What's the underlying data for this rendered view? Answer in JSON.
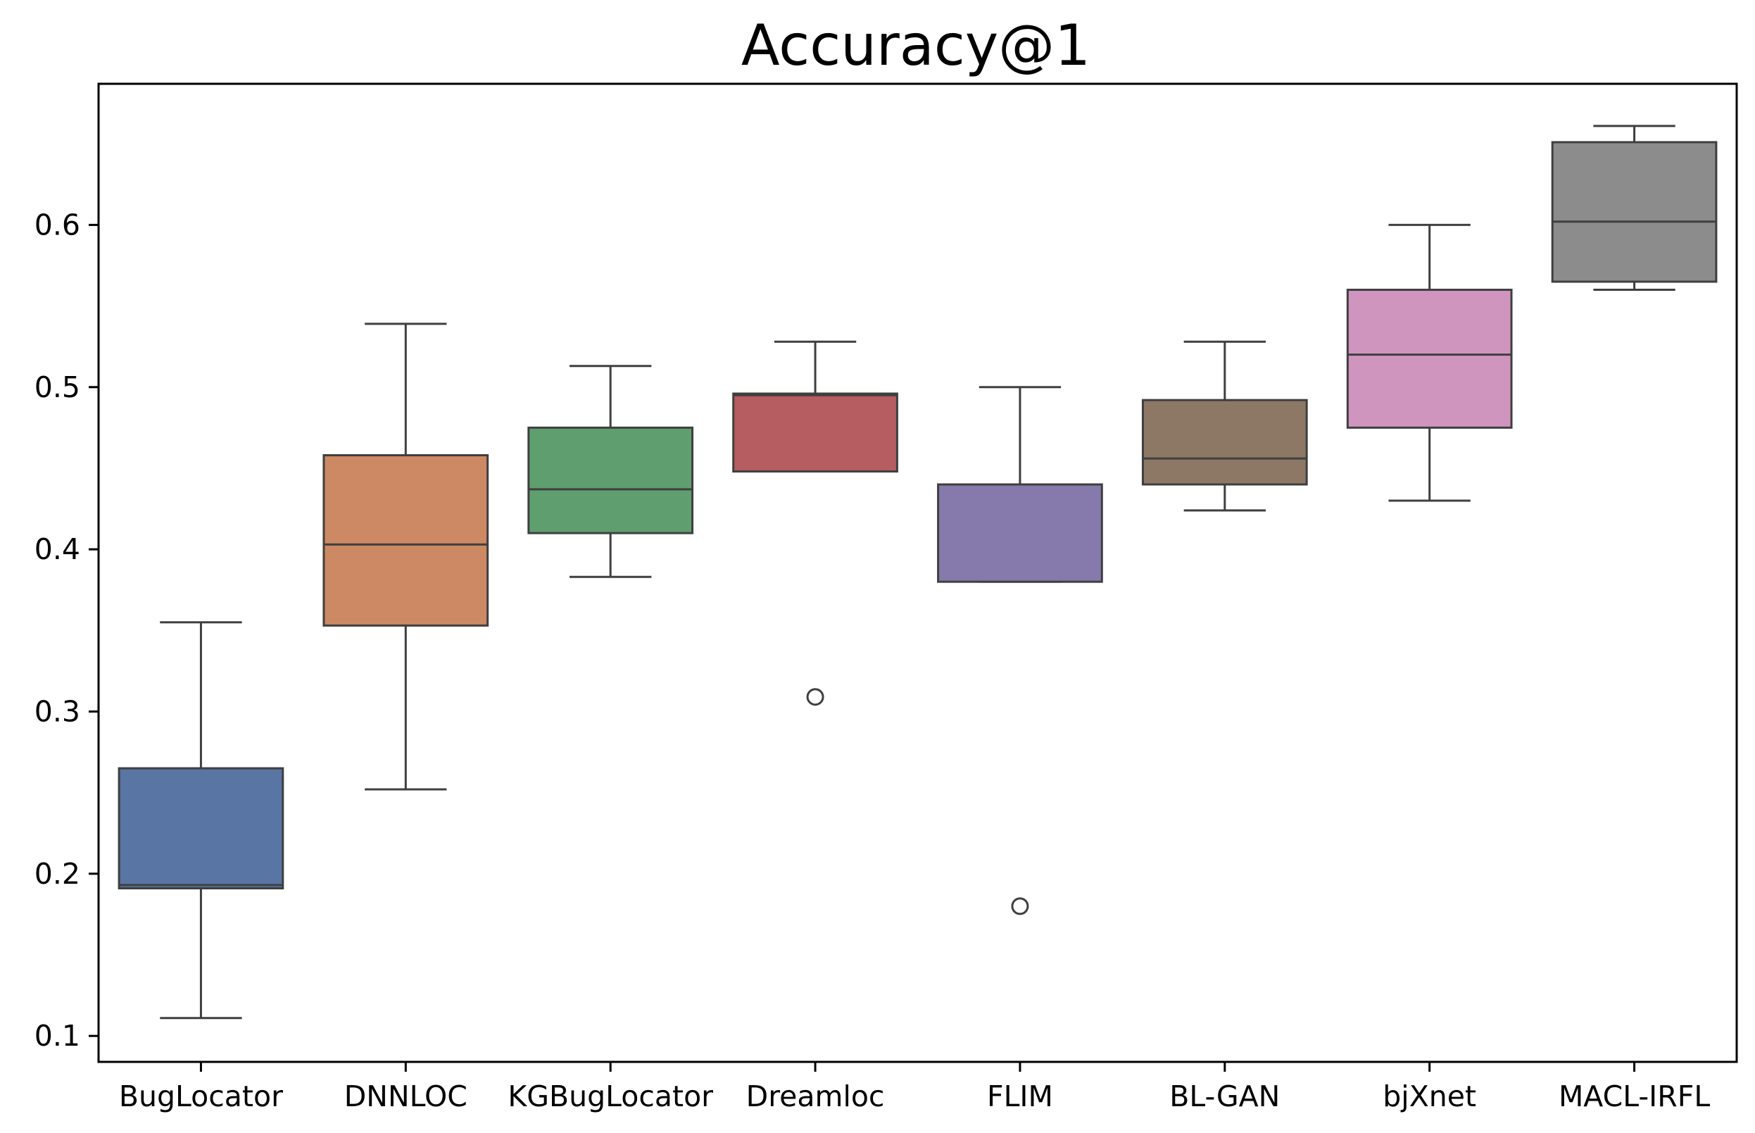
{
  "chart_data": {
    "type": "boxplot",
    "title": "Accuracy@1",
    "xlabel": "",
    "ylabel": "",
    "ylim": [
      0.084,
      0.687
    ],
    "yticks": [
      "0.1",
      "0.2",
      "0.3",
      "0.4",
      "0.5",
      "0.6"
    ],
    "grid": false,
    "series": [
      {
        "name": "BugLocator",
        "color": "#5875a4",
        "whisker_low": 0.111,
        "q1": 0.191,
        "median": 0.193,
        "q3": 0.265,
        "whisker_high": 0.355,
        "outliers": []
      },
      {
        "name": "DNNLOC",
        "color": "#cc8963",
        "whisker_low": 0.252,
        "q1": 0.353,
        "median": 0.403,
        "q3": 0.458,
        "whisker_high": 0.539,
        "outliers": []
      },
      {
        "name": "KGBugLocator",
        "color": "#5f9e6e",
        "whisker_low": 0.383,
        "q1": 0.41,
        "median": 0.437,
        "q3": 0.475,
        "whisker_high": 0.513,
        "outliers": []
      },
      {
        "name": "Dreamloc",
        "color": "#b55d60",
        "whisker_low": 0.448,
        "q1": 0.448,
        "median": 0.495,
        "q3": 0.496,
        "whisker_high": 0.528,
        "outliers": [
          0.309
        ]
      },
      {
        "name": "FLIM",
        "color": "#857aab",
        "whisker_low": 0.38,
        "q1": 0.38,
        "median": 0.44,
        "q3": 0.44,
        "whisker_high": 0.5,
        "outliers": [
          0.18
        ]
      },
      {
        "name": "BL-GAN",
        "color": "#8d7866",
        "whisker_low": 0.424,
        "q1": 0.44,
        "median": 0.456,
        "q3": 0.492,
        "whisker_high": 0.528,
        "outliers": []
      },
      {
        "name": "bjXnet",
        "color": "#d095bf",
        "whisker_low": 0.43,
        "q1": 0.475,
        "median": 0.52,
        "q3": 0.56,
        "whisker_high": 0.6,
        "outliers": []
      },
      {
        "name": "MACL-IRFL",
        "color": "#8c8c8c",
        "whisker_low": 0.56,
        "q1": 0.565,
        "median": 0.602,
        "q3": 0.651,
        "whisker_high": 0.661,
        "outliers": []
      }
    ]
  }
}
